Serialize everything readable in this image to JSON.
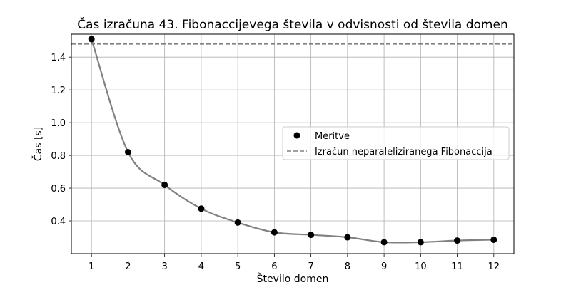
{
  "chart_data": {
    "type": "line",
    "title": "Čas izračuna 43. Fibonaccijevega števila v odvisnosti od števila domen",
    "xlabel": "Število domen",
    "ylabel": "Čas [s]",
    "x": [
      1,
      2,
      3,
      4,
      5,
      6,
      7,
      8,
      9,
      10,
      11,
      12
    ],
    "xlim": [
      0.45,
      12.55
    ],
    "ylim": [
      0.2,
      1.54
    ],
    "yticks": [
      0.4,
      0.6,
      0.8,
      1.0,
      1.2,
      1.4
    ],
    "ytick_labels": [
      "0.4",
      "0.6",
      "0.8",
      "1.0",
      "1.2",
      "1.4"
    ],
    "xtick_labels": [
      "1",
      "2",
      "3",
      "4",
      "5",
      "6",
      "7",
      "8",
      "9",
      "10",
      "11",
      "12"
    ],
    "grid": true,
    "legend_position": "center-right",
    "series": [
      {
        "name": "Meritve",
        "style": "markers+smooth-line",
        "marker_color": "#000000",
        "line_color": "#808080",
        "values": [
          1.51,
          0.82,
          0.62,
          0.475,
          0.39,
          0.33,
          0.315,
          0.3,
          0.27,
          0.27,
          0.28,
          0.285
        ]
      }
    ],
    "reference_line": {
      "name": "Izračun neparaleliziranega Fibonaccija",
      "y": 1.48,
      "color": "#808080",
      "style": "dashed"
    }
  }
}
